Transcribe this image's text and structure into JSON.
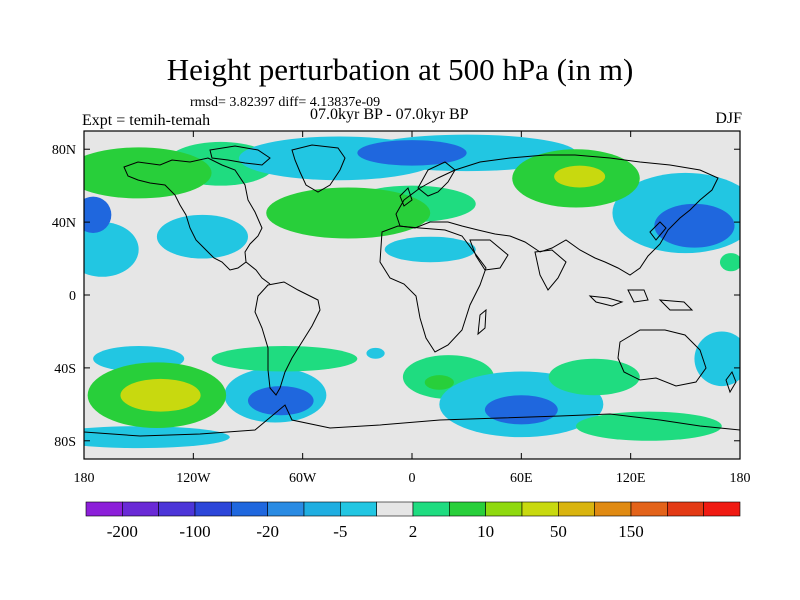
{
  "title": "Height perturbation at 500 hPa (in m)",
  "stats_line": "rmsd= 3.82397 diff= 4.13837e-09",
  "subtitle": "07.0kyr BP - 07.0kyr BP",
  "left_label": "Expt = temih-temah",
  "right_label": "DJF",
  "map": {
    "projection": "cylindrical-equidistant",
    "lon_range": [
      -180,
      180
    ],
    "lat_range": [
      -90,
      90
    ],
    "x_ticks": [
      {
        "value": -180,
        "label": "180"
      },
      {
        "value": -120,
        "label": "120W"
      },
      {
        "value": -60,
        "label": "60W"
      },
      {
        "value": 0,
        "label": "0"
      },
      {
        "value": 60,
        "label": "60E"
      },
      {
        "value": 120,
        "label": "120E"
      },
      {
        "value": 180,
        "label": "180"
      }
    ],
    "y_ticks": [
      {
        "value": 80,
        "label": "80N"
      },
      {
        "value": 40,
        "label": "40N"
      },
      {
        "value": 0,
        "label": "0"
      },
      {
        "value": -40,
        "label": "40S"
      },
      {
        "value": -80,
        "label": "80S"
      }
    ],
    "background_color": "#e6e6e6"
  },
  "colorbar": {
    "colors": [
      "#8c1fd9",
      "#6a2ad6",
      "#4c35d8",
      "#2c46d9",
      "#1f67de",
      "#2a8be3",
      "#1faee1",
      "#22c6e2",
      "#e6e6e6",
      "#1fdc80",
      "#28cf3a",
      "#8fd90f",
      "#c8d90f",
      "#d9b40f",
      "#e08a12",
      "#e3631a",
      "#e33a15",
      "#f01a12"
    ],
    "labels": [
      {
        "text": "-200",
        "boundary": 1
      },
      {
        "text": "-100",
        "boundary": 3
      },
      {
        "text": "-20",
        "boundary": 5
      },
      {
        "text": "-5",
        "boundary": 7
      },
      {
        "text": "2",
        "boundary": 9
      },
      {
        "text": "10",
        "boundary": 11
      },
      {
        "text": "50",
        "boundary": 13
      },
      {
        "text": "150",
        "boundary": 15
      }
    ]
  },
  "chart_data": {
    "type": "heatmap",
    "title": "Height perturbation at 500 hPa (in m)",
    "xlabel": "",
    "ylabel": "",
    "xlim": [
      -180,
      180
    ],
    "ylim": [
      -90,
      90
    ],
    "blobs": [
      {
        "lon": -150,
        "lat": 67,
        "rlon": 40,
        "rlat": 14,
        "level": 10
      },
      {
        "lon": -105,
        "lat": 72,
        "rlon": 30,
        "rlat": 12,
        "level": 5
      },
      {
        "lon": -35,
        "lat": 45,
        "rlon": 45,
        "rlat": 14,
        "level": 10
      },
      {
        "lon": 0,
        "lat": 50,
        "rlon": 35,
        "rlat": 10,
        "level": 5
      },
      {
        "lon": -40,
        "lat": 75,
        "rlon": 55,
        "rlat": 12,
        "level": -5
      },
      {
        "lon": 30,
        "lat": 78,
        "rlon": 60,
        "rlat": 10,
        "level": -5
      },
      {
        "lon": 0,
        "lat": 78,
        "rlon": 30,
        "rlat": 7,
        "level": -20
      },
      {
        "lon": 90,
        "lat": 64,
        "rlon": 35,
        "rlat": 16,
        "level": 10
      },
      {
        "lon": 92,
        "lat": 65,
        "rlon": 14,
        "rlat": 6,
        "level": 20
      },
      {
        "lon": 150,
        "lat": 45,
        "rlon": 40,
        "rlat": 22,
        "level": -5
      },
      {
        "lon": 155,
        "lat": 38,
        "rlon": 22,
        "rlat": 12,
        "level": -20
      },
      {
        "lon": -115,
        "lat": 32,
        "rlon": 25,
        "rlat": 12,
        "level": -5
      },
      {
        "lon": -170,
        "lat": 25,
        "rlon": 20,
        "rlat": 15,
        "level": -5
      },
      {
        "lon": -175,
        "lat": 44,
        "rlon": 10,
        "rlat": 10,
        "level": -20
      },
      {
        "lon": 10,
        "lat": 25,
        "rlon": 25,
        "rlat": 7,
        "level": -5
      },
      {
        "lon": 175,
        "lat": 18,
        "rlon": 6,
        "rlat": 5,
        "level": 5
      },
      {
        "lon": -140,
        "lat": -55,
        "rlon": 38,
        "rlat": 18,
        "level": 10
      },
      {
        "lon": -138,
        "lat": -55,
        "rlon": 22,
        "rlat": 9,
        "level": 20
      },
      {
        "lon": -150,
        "lat": -35,
        "rlon": 25,
        "rlat": 7,
        "level": -5
      },
      {
        "lon": -75,
        "lat": -55,
        "rlon": 28,
        "rlat": 15,
        "level": -5
      },
      {
        "lon": -72,
        "lat": -58,
        "rlon": 18,
        "rlat": 8,
        "level": -20
      },
      {
        "lon": -70,
        "lat": -35,
        "rlon": 40,
        "rlat": 7,
        "level": 5
      },
      {
        "lon": 20,
        "lat": -45,
        "rlon": 25,
        "rlat": 12,
        "level": 5
      },
      {
        "lon": 15,
        "lat": -48,
        "rlon": 8,
        "rlat": 4,
        "level": 10
      },
      {
        "lon": 60,
        "lat": -60,
        "rlon": 45,
        "rlat": 18,
        "level": -5
      },
      {
        "lon": 60,
        "lat": -63,
        "rlon": 20,
        "rlat": 8,
        "level": -20
      },
      {
        "lon": 100,
        "lat": -45,
        "rlon": 25,
        "rlat": 10,
        "level": 5
      },
      {
        "lon": 130,
        "lat": -72,
        "rlon": 40,
        "rlat": 8,
        "level": 5
      },
      {
        "lon": 170,
        "lat": -35,
        "rlon": 15,
        "rlat": 15,
        "level": -5
      },
      {
        "lon": -150,
        "lat": -78,
        "rlon": 50,
        "rlat": 6,
        "level": -5
      },
      {
        "lon": -20,
        "lat": -32,
        "rlon": 5,
        "rlat": 3,
        "level": -5
      }
    ]
  }
}
